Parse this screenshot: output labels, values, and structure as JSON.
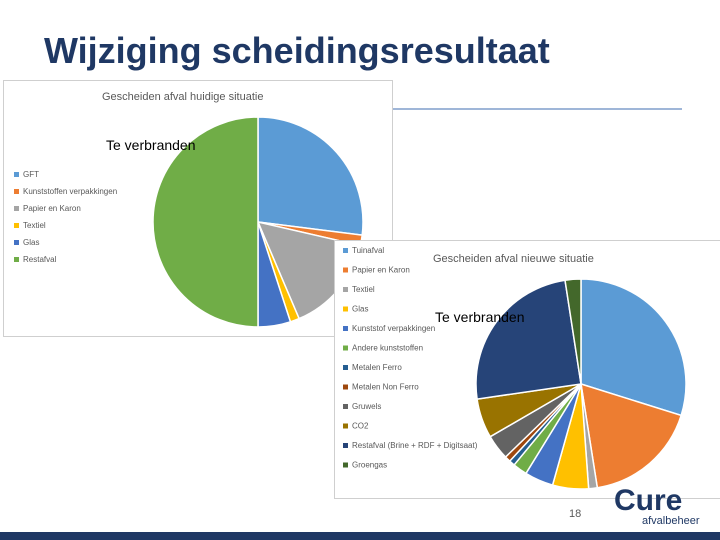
{
  "slide": {
    "title": "Wijziging scheidingsresultaat",
    "page_number": "18"
  },
  "logo": {
    "word": "Cure",
    "subtitle": "afvalbeheer"
  },
  "colors": {
    "title": "#1f3864",
    "accent": "#4a82c3"
  },
  "chart_data": [
    {
      "type": "pie",
      "title": "Gescheiden afval huidige situatie",
      "annotation": "Te verbranden",
      "legend_position": "left",
      "grid": false,
      "series": [
        {
          "name": "GFT",
          "value": 27.0,
          "color": "#5b9bd5"
        },
        {
          "name": "Kunststoffen verpakkingen",
          "value": 1.6,
          "color": "#ed7d31"
        },
        {
          "name": "Papier en Karon",
          "value": 15.0,
          "color": "#a5a5a5"
        },
        {
          "name": "Textiel",
          "value": 1.4,
          "color": "#ffc000"
        },
        {
          "name": "Glas",
          "value": 5.0,
          "color": "#4472c4"
        },
        {
          "name": "Restafval",
          "value": 50.0,
          "color": "#70ad47"
        }
      ]
    },
    {
      "type": "pie",
      "title": "Gescheiden afval nieuwe situatie",
      "annotation": "Te verbranden",
      "legend_position": "left",
      "grid": false,
      "series": [
        {
          "name": "Tuinafval",
          "value": 27.0,
          "color": "#5b9bd5"
        },
        {
          "name": "Papier en Karon",
          "value": 16.0,
          "color": "#ed7d31"
        },
        {
          "name": "Textiel",
          "value": 1.2,
          "color": "#a5a5a5"
        },
        {
          "name": "Glas",
          "value": 5.0,
          "color": "#ffc000"
        },
        {
          "name": "Kunststof verpakkingen",
          "value": 4.0,
          "color": "#4472c4"
        },
        {
          "name": "Andere kunststoffen",
          "value": 2.0,
          "color": "#70ad47"
        },
        {
          "name": "Metalen Ferro",
          "value": 0.8,
          "color": "#255e91"
        },
        {
          "name": "Metalen Non Ferro",
          "value": 0.8,
          "color": "#9e480e"
        },
        {
          "name": "Gruwels",
          "value": 3.5,
          "color": "#636363"
        },
        {
          "name": "CO2",
          "value": 5.5,
          "color": "#997300"
        },
        {
          "name": "Restafval (Brine + RDF + Digitsaat)",
          "value": 22.5,
          "color": "#264478"
        },
        {
          "name": "Groengas",
          "value": 2.2,
          "color": "#43682b"
        }
      ]
    }
  ]
}
